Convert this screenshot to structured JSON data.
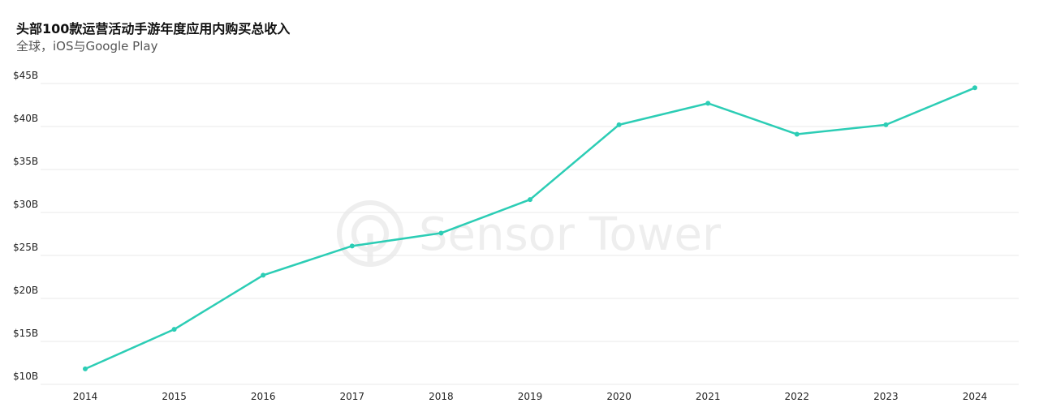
{
  "title": "头部100款运营活动手游年度应用内购买总收入",
  "subtitle": "全球，iOS与Google Play",
  "watermark": {
    "brand": "Sensor Tower"
  },
  "colors": {
    "line": "#2ccdb5",
    "grid": "#e8e8e8",
    "text": "#222222",
    "watermark": "#eeeeee"
  },
  "chart_data": {
    "type": "line",
    "title": "头部100款运营活动手游年度应用内购买总收入",
    "subtitle": "全球，iOS与Google Play",
    "xlabel": "",
    "ylabel": "",
    "x": [
      "2014",
      "2015",
      "2016",
      "2017",
      "2018",
      "2019",
      "2020",
      "2021",
      "2022",
      "2023",
      "2024"
    ],
    "series": [
      {
        "values": [
          11.8,
          16.4,
          22.7,
          26.1,
          27.6,
          31.5,
          40.2,
          42.7,
          39.1,
          40.2,
          44.5
        ]
      }
    ],
    "ylim": [
      10,
      45
    ],
    "yticks": [
      10,
      15,
      20,
      25,
      30,
      35,
      40,
      45
    ],
    "ytick_labels": [
      "$10B",
      "$15B",
      "$20B",
      "$25B",
      "$30B",
      "$35B",
      "$40B",
      "$45B"
    ],
    "grid": true,
    "legend": "none",
    "unit": "$B"
  }
}
